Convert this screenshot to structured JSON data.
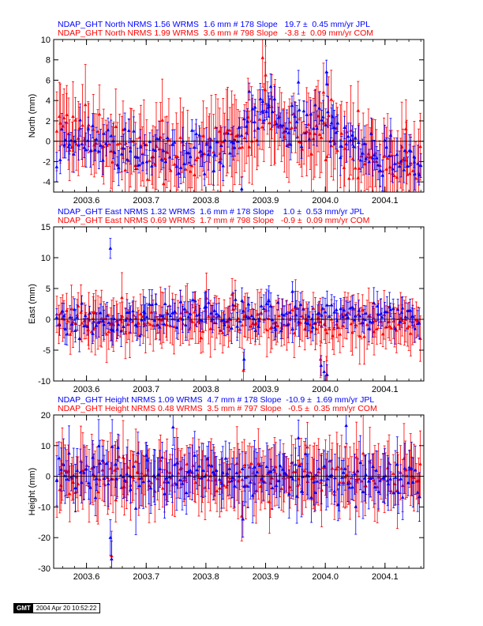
{
  "colors": {
    "jpl": "#0000ff",
    "com": "#ff0000",
    "axis": "#000000"
  },
  "footer": {
    "logo": "GMT",
    "timestamp": "2004 Apr 20 10:52:22"
  },
  "chart_data": [
    {
      "type": "scatter",
      "component": "North",
      "ylabel": "North (mm)",
      "ylim": [
        -5,
        10
      ],
      "yticks": [
        -4,
        -2,
        0,
        2,
        4,
        6,
        8,
        10
      ],
      "xlim": [
        2003.545,
        2004.165
      ],
      "xticks": [
        2003.6,
        2003.7,
        2003.8,
        2003.9,
        2004.0,
        2004.1
      ],
      "xtick_labels": [
        "2003.6",
        "2003.7",
        "2003.8",
        "2003.9",
        "2004.0",
        "2004.1"
      ],
      "zero_line": true,
      "title_lines": [
        {
          "color": "blue",
          "text": "NDAP_GHT North NRMS 1.56 WRMS  1.6 mm # 178 Slope   19.7 ±  0.45 mm/yr JPL"
        },
        {
          "color": "red",
          "text": "NDAP_GHT North NRMS 1.99 WRMS  3.6 mm # 798 Slope   -3.8 ±  0.09 mm/yr COM"
        }
      ],
      "series": [
        {
          "name": "JPL",
          "color": "blue",
          "n": 178,
          "err_typical": 1.3,
          "trend": [
            [
              2003.55,
              0.5
            ],
            [
              2003.65,
              -0.3
            ],
            [
              2003.75,
              -1.0
            ],
            [
              2003.82,
              -0.5
            ],
            [
              2003.86,
              1.0
            ],
            [
              2003.9,
              3.2
            ],
            [
              2003.94,
              1.0
            ],
            [
              2004.0,
              1.5
            ],
            [
              2004.05,
              -0.5
            ],
            [
              2004.16,
              -2.0
            ]
          ],
          "noise": 1.1,
          "outliers": [
            [
              2003.603,
              1.2
            ],
            [
              2003.895,
              3.9
            ],
            [
              2003.905,
              3.6
            ],
            [
              2003.955,
              5.8
            ],
            [
              2004.002,
              6.8
            ],
            [
              2004.003,
              5.6
            ],
            [
              2004.012,
              2.4
            ],
            [
              2003.86,
              -4.7
            ],
            [
              2004.16,
              -2.4
            ]
          ]
        },
        {
          "name": "COM",
          "color": "red",
          "n": 798,
          "err_typical": 3.2,
          "trend": [
            [
              2003.55,
              1.0
            ],
            [
              2003.65,
              0.0
            ],
            [
              2003.75,
              -1.5
            ],
            [
              2003.82,
              -1.0
            ],
            [
              2003.86,
              0.5
            ],
            [
              2003.9,
              2.0
            ],
            [
              2003.94,
              0.5
            ],
            [
              2004.0,
              0.2
            ],
            [
              2004.05,
              -1.5
            ],
            [
              2004.16,
              -3.0
            ]
          ],
          "noise": 1.2,
          "outliers": [
            [
              2003.895,
              8.2
            ],
            [
              2003.9,
              6.5
            ],
            [
              2003.997,
              4.8
            ],
            [
              2004.01,
              4.1
            ],
            [
              2004.055,
              3.0
            ],
            [
              2004.135,
              1.2
            ],
            [
              2003.567,
              2.6
            ]
          ]
        }
      ]
    },
    {
      "type": "scatter",
      "component": "East",
      "ylabel": "East (mm)",
      "ylim": [
        -10,
        15
      ],
      "yticks": [
        -10,
        -5,
        0,
        5,
        10,
        15
      ],
      "xlim": [
        2003.545,
        2004.165
      ],
      "xticks": [
        2003.6,
        2003.7,
        2003.8,
        2003.9,
        2004.0,
        2004.1
      ],
      "xtick_labels": [
        "2003.6",
        "2003.7",
        "2003.8",
        "2003.9",
        "2004.0",
        "2004.1"
      ],
      "zero_line": true,
      "title_lines": [
        {
          "color": "blue",
          "text": "NDAP_GHT East NRMS 1.32 WRMS  1.6 mm # 178 Slope    1.0 ±  0.53 mm/yr JPL"
        },
        {
          "color": "red",
          "text": "NDAP_GHT East NRMS 0.69 WRMS  1.7 mm # 798 Slope   -0.9 ±  0.09 mm/yr COM"
        }
      ],
      "series": [
        {
          "name": "JPL",
          "color": "blue",
          "n": 178,
          "err_typical": 1.8,
          "trend": [
            [
              2003.55,
              -0.5
            ],
            [
              2003.9,
              0.5
            ],
            [
              2004.165,
              0.0
            ]
          ],
          "noise": 1.3,
          "outliers": [
            [
              2003.64,
              11.5
            ],
            [
              2003.864,
              -6.5
            ],
            [
              2003.905,
              3.0
            ],
            [
              2003.945,
              4.5
            ],
            [
              2003.993,
              -7.5
            ],
            [
              2003.998,
              -8.5
            ],
            [
              2004.003,
              -9.0
            ]
          ]
        },
        {
          "name": "COM",
          "color": "red",
          "n": 798,
          "err_typical": 3.3,
          "trend": [
            [
              2003.55,
              -0.5
            ],
            [
              2003.9,
              0.0
            ],
            [
              2004.165,
              -1.0
            ]
          ],
          "noise": 1.2,
          "outliers": [
            [
              2003.863,
              -8.3
            ],
            [
              2003.992,
              -6.5
            ],
            [
              2004.002,
              -9.0
            ],
            [
              2003.612,
              1.2
            ]
          ]
        }
      ]
    },
    {
      "type": "scatter",
      "component": "Height",
      "ylabel": "Height (mm)",
      "ylim": [
        -30,
        20
      ],
      "yticks": [
        -30,
        -20,
        -10,
        0,
        10,
        20
      ],
      "xlim": [
        2003.545,
        2004.165
      ],
      "xticks": [
        2003.6,
        2003.7,
        2003.8,
        2003.9,
        2004.0,
        2004.1
      ],
      "xtick_labels": [
        "2003.6",
        "2003.7",
        "2003.8",
        "2003.9",
        "2004.0",
        "2004.1"
      ],
      "zero_line": true,
      "title_lines": [
        {
          "color": "blue",
          "text": "NDAP_GHT Height NRMS 1.09 WRMS  4.7 mm # 178 Slope  -10.9 ±  1.69 mm/yr JPL"
        },
        {
          "color": "red",
          "text": "NDAP_GHT Height NRMS 0.48 WRMS  3.5 mm # 797 Slope   -0.5 ±  0.35 mm/yr COM"
        }
      ],
      "series": [
        {
          "name": "JPL",
          "color": "blue",
          "n": 178,
          "err_typical": 6.5,
          "trend": [
            [
              2003.55,
              1.0
            ],
            [
              2003.9,
              -0.5
            ],
            [
              2004.165,
              -2.0
            ]
          ],
          "noise": 3.5,
          "outliers": [
            [
              2003.64,
              -20.0
            ],
            [
              2003.642,
              -27.0
            ],
            [
              2003.745,
              16.0
            ],
            [
              2003.955,
              12.5
            ],
            [
              2004.035,
              16.5
            ],
            [
              2003.862,
              -14.0
            ],
            [
              2003.615,
              -7.0
            ]
          ]
        },
        {
          "name": "COM",
          "color": "red",
          "n": 797,
          "err_typical": 9.0,
          "trend": [
            [
              2003.55,
              0.0
            ],
            [
              2003.9,
              0.0
            ],
            [
              2004.165,
              0.5
            ]
          ],
          "noise": 2.8,
          "outliers": [
            [
              2003.642,
              -26.0
            ],
            [
              2003.97,
              9.5
            ],
            [
              2003.557,
              -3.0
            ],
            [
              2003.86,
              -13.0
            ]
          ]
        }
      ]
    }
  ]
}
